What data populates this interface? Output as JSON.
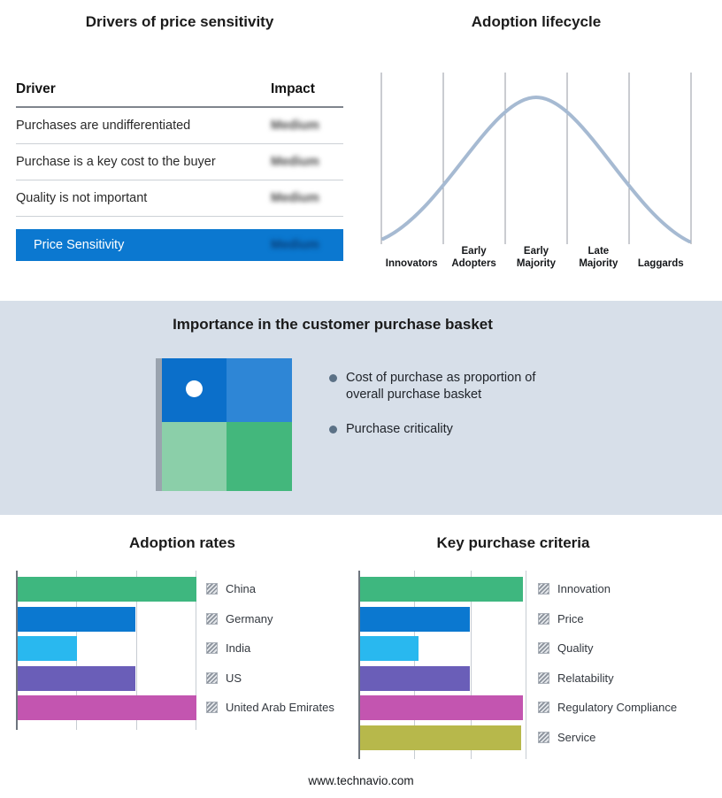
{
  "drivers_panel": {
    "title": "Drivers of price sensitivity",
    "header": {
      "driver": "Driver",
      "impact": "Impact"
    },
    "rows": [
      {
        "driver": "Purchases are undifferentiated",
        "impact": "Medium"
      },
      {
        "driver": "Purchase is a key cost to the buyer",
        "impact": "Medium"
      },
      {
        "driver": "Quality is not important",
        "impact": "Medium"
      }
    ],
    "summary": {
      "label": "Price Sensitivity",
      "impact": "Medium"
    },
    "highlight_color": "#0b78d0"
  },
  "basket_panel": {
    "title": "Importance in the customer purchase basket",
    "bullets": [
      "Cost of purchase as proportion of overall purchase basket",
      "Purchase criticality"
    ],
    "quadrant_colors": [
      "#0b6fca",
      "#2e86d6",
      "#8bcfa9",
      "#43b77c"
    ]
  },
  "footer": {
    "site": "www.technavio.com"
  },
  "chart_data": [
    {
      "id": "adoption_rates",
      "type": "bar",
      "title": "Adoption rates",
      "orientation": "horizontal",
      "categories": [
        "China",
        "Germany",
        "India",
        "US",
        "United Arab Emirates"
      ],
      "values": [
        100,
        66,
        33,
        66,
        100
      ],
      "colors": [
        "#3eb77f",
        "#0b78d0",
        "#29b8ef",
        "#6a5eb8",
        "#c355b0"
      ],
      "xlim": [
        0,
        100
      ],
      "grid": true,
      "legend_position": "right"
    },
    {
      "id": "key_purchase_criteria",
      "type": "bar",
      "title": "Key purchase criteria",
      "orientation": "horizontal",
      "categories": [
        "Innovation",
        "Price",
        "Quality",
        "Relatability",
        "Regulatory Compliance",
        "Service"
      ],
      "values": [
        98,
        66,
        35,
        66,
        98,
        97
      ],
      "colors": [
        "#3eb77f",
        "#0b78d0",
        "#29b8ef",
        "#6a5eb8",
        "#c355b0",
        "#b7b84b"
      ],
      "xlim": [
        0,
        100
      ],
      "grid": true,
      "legend_position": "right"
    },
    {
      "id": "adoption_lifecycle",
      "type": "line",
      "title": "Adoption lifecycle",
      "curve": "bell",
      "categories": [
        "Innovators",
        "Early Adopters",
        "Early Majority",
        "Late Majority",
        "Laggards"
      ],
      "values": [
        8,
        55,
        100,
        55,
        8
      ],
      "line_color": "#a6bad2",
      "grid": true
    }
  ]
}
